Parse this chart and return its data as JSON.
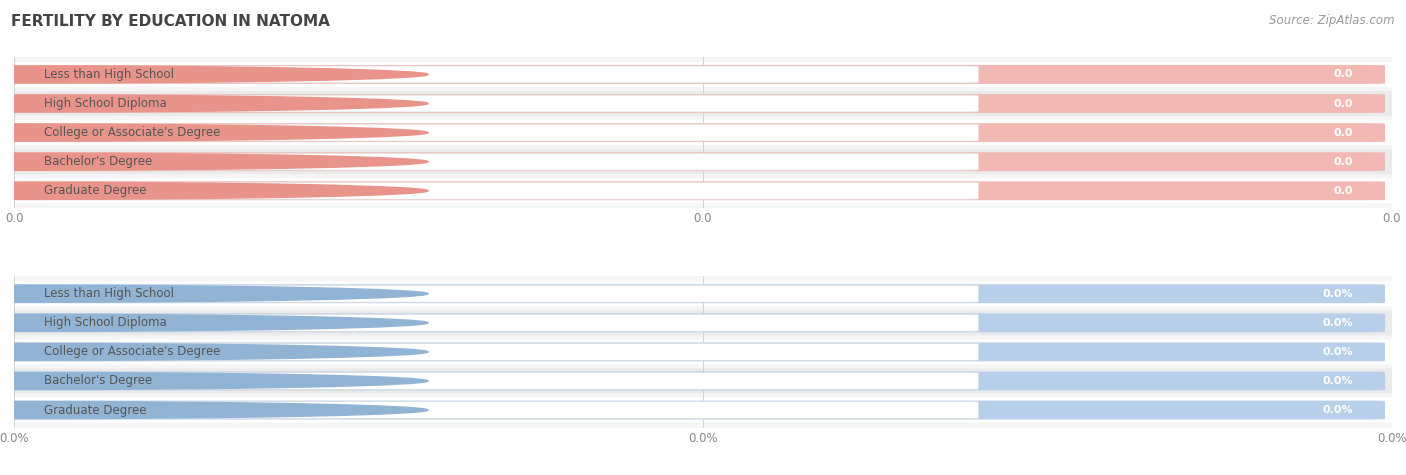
{
  "title": "FERTILITY BY EDUCATION IN NATOMA",
  "source": "Source: ZipAtlas.com",
  "categories": [
    "Less than High School",
    "High School Diploma",
    "College or Associate's Degree",
    "Bachelor's Degree",
    "Graduate Degree"
  ],
  "top_values": [
    0.0,
    0.0,
    0.0,
    0.0,
    0.0
  ],
  "bottom_values": [
    0.0,
    0.0,
    0.0,
    0.0,
    0.0
  ],
  "top_bar_color": "#e8948a",
  "top_bar_light": "#f2b8b4",
  "bottom_bar_color": "#92b4d4",
  "bottom_bar_light": "#b8cfea",
  "row_even_color": "#f8f8f8",
  "row_odd_color": "#efefef",
  "panel_bg": "#f0f0f0",
  "xtick_labels_top": [
    "0.0",
    "0.0",
    "0.0"
  ],
  "xtick_labels_bottom": [
    "0.0%",
    "0.0%",
    "0.0%"
  ],
  "background_color": "#ffffff",
  "title_fontsize": 11,
  "source_fontsize": 8.5,
  "label_fontsize": 8.5,
  "value_fontsize": 8
}
